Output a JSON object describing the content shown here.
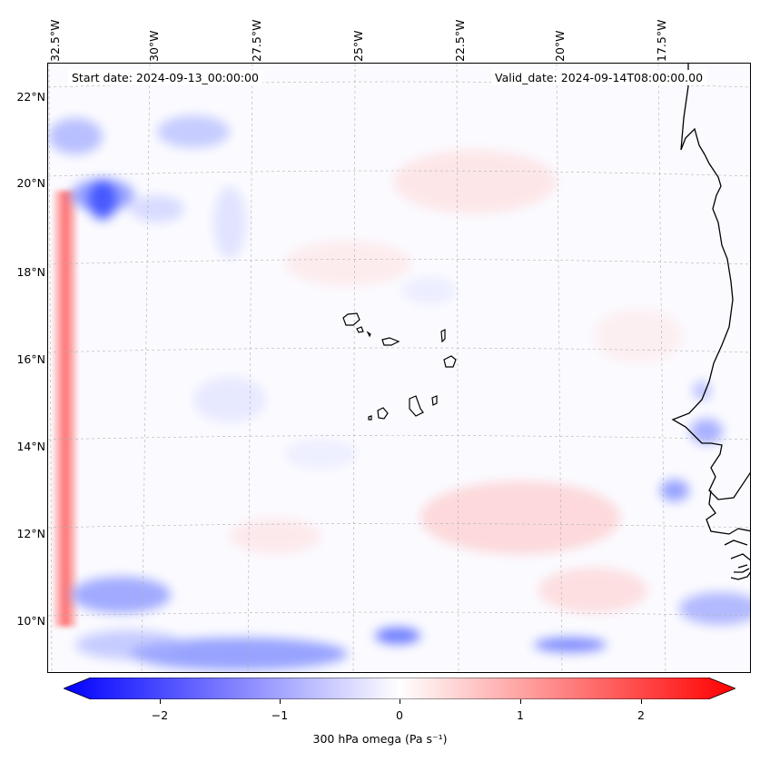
{
  "map": {
    "start_label": "Start date: 2024-09-13_00:00:00",
    "valid_label": "Valid_date: 2024-09-14T08:00:00.00",
    "lon_labels": [
      "32.5°W",
      "30°W",
      "27.5°W",
      "25°W",
      "22.5°W",
      "20°W",
      "17.5°W"
    ],
    "lat_labels": [
      "22°N",
      "20°N",
      "18°N",
      "16°N",
      "14°N",
      "12°N",
      "10°N"
    ],
    "colors": {
      "negative": "#0000ff",
      "positive": "#ff0000",
      "neutral": "#ffffff",
      "coastline": "#000000"
    }
  },
  "colorbar": {
    "ticks": [
      "−2",
      "−1",
      "0",
      "1",
      "2"
    ],
    "label": "300 hPa omega (Pa s⁻¹)",
    "range": [
      -2.7,
      2.7
    ]
  }
}
